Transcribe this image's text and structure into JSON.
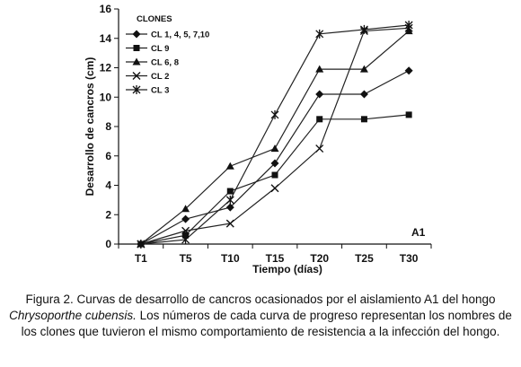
{
  "chart_data": {
    "type": "line",
    "categories": [
      "T1",
      "T5",
      "T10",
      "T15",
      "T20",
      "T25",
      "T30"
    ],
    "xlabel": "Tiempo (días)",
    "ylabel": "Desarrollo de cancros (cm)",
    "ylim": [
      0,
      16
    ],
    "yticks": [
      0,
      2,
      4,
      6,
      8,
      10,
      12,
      14,
      16
    ],
    "grid": false,
    "legend_title": "CLONES",
    "legend_position": "top-left",
    "panel_label": "A1",
    "series": [
      {
        "name": "CL 1, 4, 5, 7,10",
        "marker": "diamond",
        "values": [
          0,
          1.7,
          2.5,
          5.5,
          10.2,
          10.2,
          11.8
        ]
      },
      {
        "name": "CL 9",
        "marker": "square",
        "values": [
          0,
          0.6,
          3.6,
          4.7,
          8.5,
          8.5,
          8.8
        ]
      },
      {
        "name": "CL 6, 8",
        "marker": "triangle",
        "values": [
          0,
          2.4,
          5.3,
          6.5,
          11.9,
          11.9,
          14.5
        ]
      },
      {
        "name": "CL 2",
        "marker": "x",
        "values": [
          0,
          0.9,
          1.4,
          3.8,
          6.5,
          14.5,
          14.7
        ]
      },
      {
        "name": "CL 3",
        "marker": "star",
        "values": [
          0,
          0.3,
          3.0,
          8.8,
          14.3,
          14.6,
          14.9
        ]
      }
    ]
  },
  "caption": {
    "part1": "Figura 2. Curvas de desarrollo de cancros ocasionados por el aislamiento A1 del hongo",
    "italic": "Chrysoporthe cubensis.",
    "part2": " Los números de cada curva de progreso representan los nombres de los clones que tuvieron el mismo comportamiento de resistencia a la infección del hongo."
  }
}
